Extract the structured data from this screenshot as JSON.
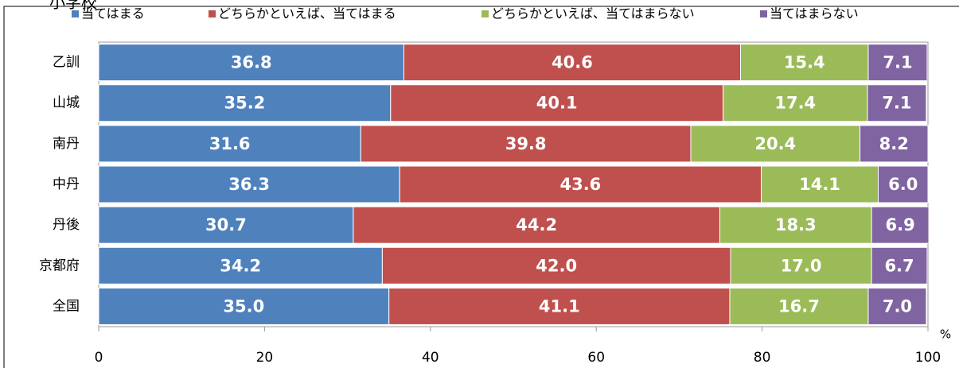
{
  "chart_data": {
    "type": "stacked-bar-horizontal",
    "title": "小学校",
    "categories": [
      "乙訓",
      "山城",
      "南丹",
      "中丹",
      "丹後",
      "京都府",
      "全国"
    ],
    "series": [
      {
        "name": "当てはまる",
        "color": "#4f81bd",
        "values": [
          36.8,
          35.2,
          31.6,
          36.3,
          30.7,
          34.2,
          35.0
        ],
        "value_labels": [
          "36.8",
          "35.2",
          "31.6",
          "36.3",
          "30.7",
          "34.2",
          "35.0"
        ]
      },
      {
        "name": "どちらかといえば、当てはまる",
        "color": "#c0504d",
        "values": [
          40.6,
          40.1,
          39.8,
          43.6,
          44.2,
          42.0,
          41.1
        ],
        "value_labels": [
          "40.6",
          "40.1",
          "39.8",
          "43.6",
          "44.2",
          "42.0",
          "41.1"
        ]
      },
      {
        "name": "どちらかといえば、当てはまらない",
        "color": "#9bbb59",
        "values": [
          15.4,
          17.4,
          20.4,
          14.1,
          18.3,
          17.0,
          16.7
        ],
        "value_labels": [
          "15.4",
          "17.4",
          "20.4",
          "14.1",
          "18.3",
          "17.0",
          "16.7"
        ]
      },
      {
        "name": "当てはまらない",
        "color": "#8064a2",
        "values": [
          7.1,
          7.1,
          8.2,
          6.0,
          6.9,
          6.7,
          7.0
        ],
        "value_labels": [
          "7.1",
          "7.1",
          "8.2",
          "6.0",
          "6.9",
          "6.7",
          "7.0"
        ]
      }
    ],
    "xlim": [
      0,
      100
    ],
    "xticks": [
      0,
      20,
      40,
      60,
      80,
      100
    ],
    "x_unit": "%"
  }
}
